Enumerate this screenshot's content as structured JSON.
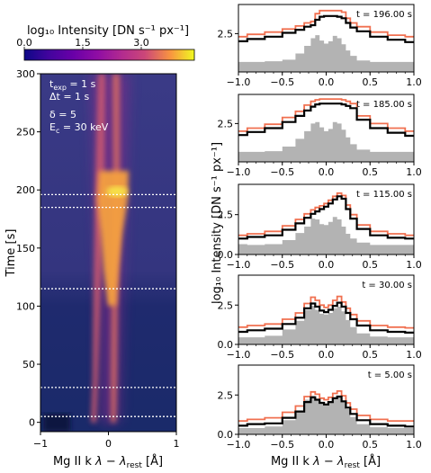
{
  "colorbar": {
    "label": "log₁₀ Intensity [DN s⁻¹ px⁻¹]",
    "ticks": [
      "0.0",
      "1.5",
      "3.0"
    ],
    "tick_values": [
      0.0,
      1.5,
      3.0
    ],
    "range": [
      0.0,
      4.0
    ]
  },
  "left_panel": {
    "annotations": [
      "t_exp = 1 s",
      "Δt = 1 s",
      "δ = 5",
      "E_c = 30 keV"
    ],
    "ylabel": "Time [s]",
    "xlabel": "Mg II k λ − λ_rest [Å]"
  },
  "right_panel": {
    "ylabel": "log₁₀ Intensity [DN s⁻¹ px⁻¹]",
    "xlabel": "Mg II k λ − λ_rest [Å]"
  },
  "chart_data": [
    {
      "type": "heatmap",
      "title": "",
      "xlabel": "Mg II k λ − λ_rest [Å]",
      "ylabel": "Time [s]",
      "xlim": [
        -1,
        1
      ],
      "ylim": [
        -8,
        300
      ],
      "x_ticks": [
        -1,
        0,
        1
      ],
      "y_ticks": [
        0,
        50,
        100,
        150,
        200,
        250,
        300
      ],
      "colormap": "plasma",
      "color_range": [
        0.0,
        4.0
      ],
      "marked_times": [
        196,
        185,
        115,
        30,
        5
      ],
      "grid": false
    },
    {
      "type": "line",
      "label": "t = 196.00 s",
      "xlim": [
        -1,
        1
      ],
      "ylim": [
        0,
        4.4
      ],
      "x_ticks": [
        -1.0,
        -0.5,
        0.0,
        0.5,
        1.0
      ],
      "y_ticks": [
        2.5
      ],
      "x": [
        -1.0,
        -0.8,
        -0.6,
        -0.4,
        -0.3,
        -0.2,
        -0.15,
        -0.1,
        -0.05,
        0.0,
        0.05,
        0.1,
        0.15,
        0.2,
        0.25,
        0.3,
        0.4,
        0.6,
        0.8,
        1.0
      ],
      "series": [
        {
          "color": "#f07050",
          "values": [
            2.3,
            2.45,
            2.6,
            2.8,
            3.0,
            3.2,
            3.3,
            3.8,
            4.0,
            4.0,
            4.0,
            4.0,
            4.0,
            3.9,
            3.5,
            3.2,
            2.95,
            2.6,
            2.4,
            2.3
          ]
        },
        {
          "color": "#000000",
          "values": [
            2.0,
            2.15,
            2.3,
            2.55,
            2.75,
            2.95,
            3.05,
            3.4,
            3.6,
            3.65,
            3.65,
            3.65,
            3.6,
            3.5,
            3.2,
            2.9,
            2.65,
            2.3,
            2.1,
            1.95
          ]
        },
        {
          "color": "#b3b3b3",
          "fill": true,
          "values": [
            0.65,
            0.65,
            0.7,
            0.8,
            1.2,
            1.7,
            2.2,
            2.4,
            2.05,
            1.85,
            2.0,
            2.35,
            2.2,
            1.8,
            1.4,
            1.05,
            0.75,
            0.65,
            0.65,
            0.65
          ]
        }
      ]
    },
    {
      "type": "line",
      "label": "t = 185.00 s",
      "xlim": [
        -1,
        1
      ],
      "ylim": [
        0,
        4.4
      ],
      "x_ticks": [
        -1.0,
        -0.5,
        0.0,
        0.5,
        1.0
      ],
      "y_ticks": [
        2.5
      ],
      "x": [
        -1.0,
        -0.8,
        -0.6,
        -0.4,
        -0.3,
        -0.2,
        -0.15,
        -0.1,
        -0.05,
        0.0,
        0.05,
        0.1,
        0.15,
        0.2,
        0.25,
        0.3,
        0.4,
        0.6,
        0.8,
        1.0
      ],
      "series": [
        {
          "color": "#f07050",
          "values": [
            2.0,
            2.2,
            2.45,
            2.9,
            3.3,
            3.7,
            3.95,
            4.05,
            4.1,
            4.1,
            4.1,
            4.1,
            4.1,
            4.05,
            3.95,
            3.8,
            3.0,
            2.5,
            2.2,
            2.0
          ]
        },
        {
          "color": "#000000",
          "values": [
            1.75,
            1.95,
            2.2,
            2.6,
            3.0,
            3.35,
            3.6,
            3.75,
            3.8,
            3.8,
            3.8,
            3.8,
            3.8,
            3.75,
            3.65,
            3.5,
            2.75,
            2.2,
            1.9,
            1.7
          ]
        },
        {
          "color": "#b3b3b3",
          "fill": true,
          "values": [
            0.65,
            0.65,
            0.7,
            1.0,
            1.5,
            2.0,
            2.5,
            2.6,
            2.25,
            2.0,
            2.15,
            2.6,
            2.5,
            2.1,
            1.6,
            1.15,
            0.8,
            0.65,
            0.65,
            0.65
          ]
        }
      ]
    },
    {
      "type": "line",
      "label": "t = 115.00 s",
      "xlim": [
        -1,
        1
      ],
      "ylim": [
        0,
        4.4
      ],
      "x_ticks": [
        -1.0,
        -0.5,
        0.0,
        0.5,
        1.0
      ],
      "y_ticks": [
        0,
        2.5
      ],
      "x": [
        -1.0,
        -0.8,
        -0.6,
        -0.4,
        -0.3,
        -0.2,
        -0.15,
        -0.1,
        -0.05,
        0.0,
        0.05,
        0.1,
        0.15,
        0.2,
        0.25,
        0.3,
        0.4,
        0.6,
        0.8,
        1.0
      ],
      "series": [
        {
          "color": "#f07050",
          "values": [
            1.2,
            1.3,
            1.45,
            1.8,
            2.2,
            2.55,
            2.8,
            2.95,
            3.05,
            3.2,
            3.4,
            3.65,
            3.85,
            3.7,
            3.1,
            2.5,
            1.85,
            1.45,
            1.3,
            1.2
          ]
        },
        {
          "color": "#000000",
          "values": [
            1.0,
            1.1,
            1.2,
            1.55,
            1.95,
            2.3,
            2.55,
            2.7,
            2.85,
            3.0,
            3.2,
            3.45,
            3.65,
            3.5,
            2.85,
            2.25,
            1.6,
            1.2,
            1.05,
            1.0
          ]
        },
        {
          "color": "#b3b3b3",
          "fill": true,
          "values": [
            0.65,
            0.6,
            0.65,
            0.9,
            1.35,
            1.75,
            2.25,
            2.2,
            1.9,
            1.85,
            2.05,
            2.35,
            2.2,
            1.75,
            1.3,
            1.0,
            0.75,
            0.6,
            0.6,
            0.6
          ]
        }
      ]
    },
    {
      "type": "line",
      "label": "t = 30.00 s",
      "xlim": [
        -1,
        1
      ],
      "ylim": [
        0,
        4.4
      ],
      "x_ticks": [
        -1.0,
        -0.5,
        0.0,
        0.5,
        1.0
      ],
      "y_ticks": [
        0,
        2.5
      ],
      "x": [
        -1.0,
        -0.8,
        -0.6,
        -0.4,
        -0.3,
        -0.2,
        -0.15,
        -0.1,
        -0.05,
        0.0,
        0.05,
        0.1,
        0.15,
        0.2,
        0.25,
        0.3,
        0.4,
        0.6,
        0.8,
        1.0
      ],
      "series": [
        {
          "color": "#f07050",
          "values": [
            1.1,
            1.2,
            1.3,
            1.6,
            2.0,
            2.6,
            3.0,
            2.8,
            2.5,
            2.35,
            2.5,
            2.8,
            3.05,
            2.7,
            2.3,
            1.9,
            1.5,
            1.2,
            1.1,
            1.05
          ]
        },
        {
          "color": "#000000",
          "values": [
            0.8,
            0.9,
            1.0,
            1.3,
            1.7,
            2.3,
            2.6,
            2.4,
            2.15,
            2.05,
            2.2,
            2.45,
            2.65,
            2.4,
            2.0,
            1.6,
            1.2,
            0.9,
            0.8,
            0.75
          ]
        },
        {
          "color": "#b3b3b3",
          "fill": true,
          "values": [
            0.45,
            0.45,
            0.55,
            0.95,
            1.5,
            2.2,
            2.45,
            2.2,
            1.95,
            1.9,
            2.0,
            2.3,
            2.4,
            2.1,
            1.55,
            1.1,
            0.7,
            0.5,
            0.45,
            0.45
          ]
        }
      ]
    },
    {
      "type": "line",
      "label": "t = 5.00 s",
      "xlim": [
        -1,
        1
      ],
      "ylim": [
        0,
        4.4
      ],
      "x_ticks": [
        -1.0,
        -0.5,
        0.0,
        0.5,
        1.0
      ],
      "y_ticks": [
        0,
        2.5
      ],
      "x": [
        -1.0,
        -0.8,
        -0.6,
        -0.4,
        -0.3,
        -0.2,
        -0.15,
        -0.1,
        -0.05,
        0.0,
        0.05,
        0.1,
        0.15,
        0.2,
        0.25,
        0.3,
        0.4,
        0.6,
        0.8,
        1.0
      ],
      "series": [
        {
          "color": "#f07050",
          "values": [
            0.85,
            0.95,
            1.05,
            1.4,
            1.8,
            2.4,
            2.7,
            2.55,
            2.3,
            2.2,
            2.35,
            2.6,
            2.75,
            2.45,
            2.0,
            1.6,
            1.2,
            0.95,
            0.85,
            0.85
          ]
        },
        {
          "color": "#000000",
          "values": [
            0.55,
            0.65,
            0.7,
            1.05,
            1.45,
            2.05,
            2.35,
            2.2,
            2.0,
            1.9,
            2.05,
            2.3,
            2.4,
            2.1,
            1.7,
            1.3,
            0.9,
            0.65,
            0.55,
            0.5
          ]
        },
        {
          "color": "#b3b3b3",
          "fill": true,
          "values": [
            0.4,
            0.4,
            0.5,
            0.9,
            1.5,
            2.2,
            2.45,
            2.25,
            2.0,
            1.95,
            2.1,
            2.35,
            2.45,
            2.15,
            1.6,
            1.1,
            0.65,
            0.45,
            0.4,
            0.4
          ]
        }
      ]
    }
  ]
}
